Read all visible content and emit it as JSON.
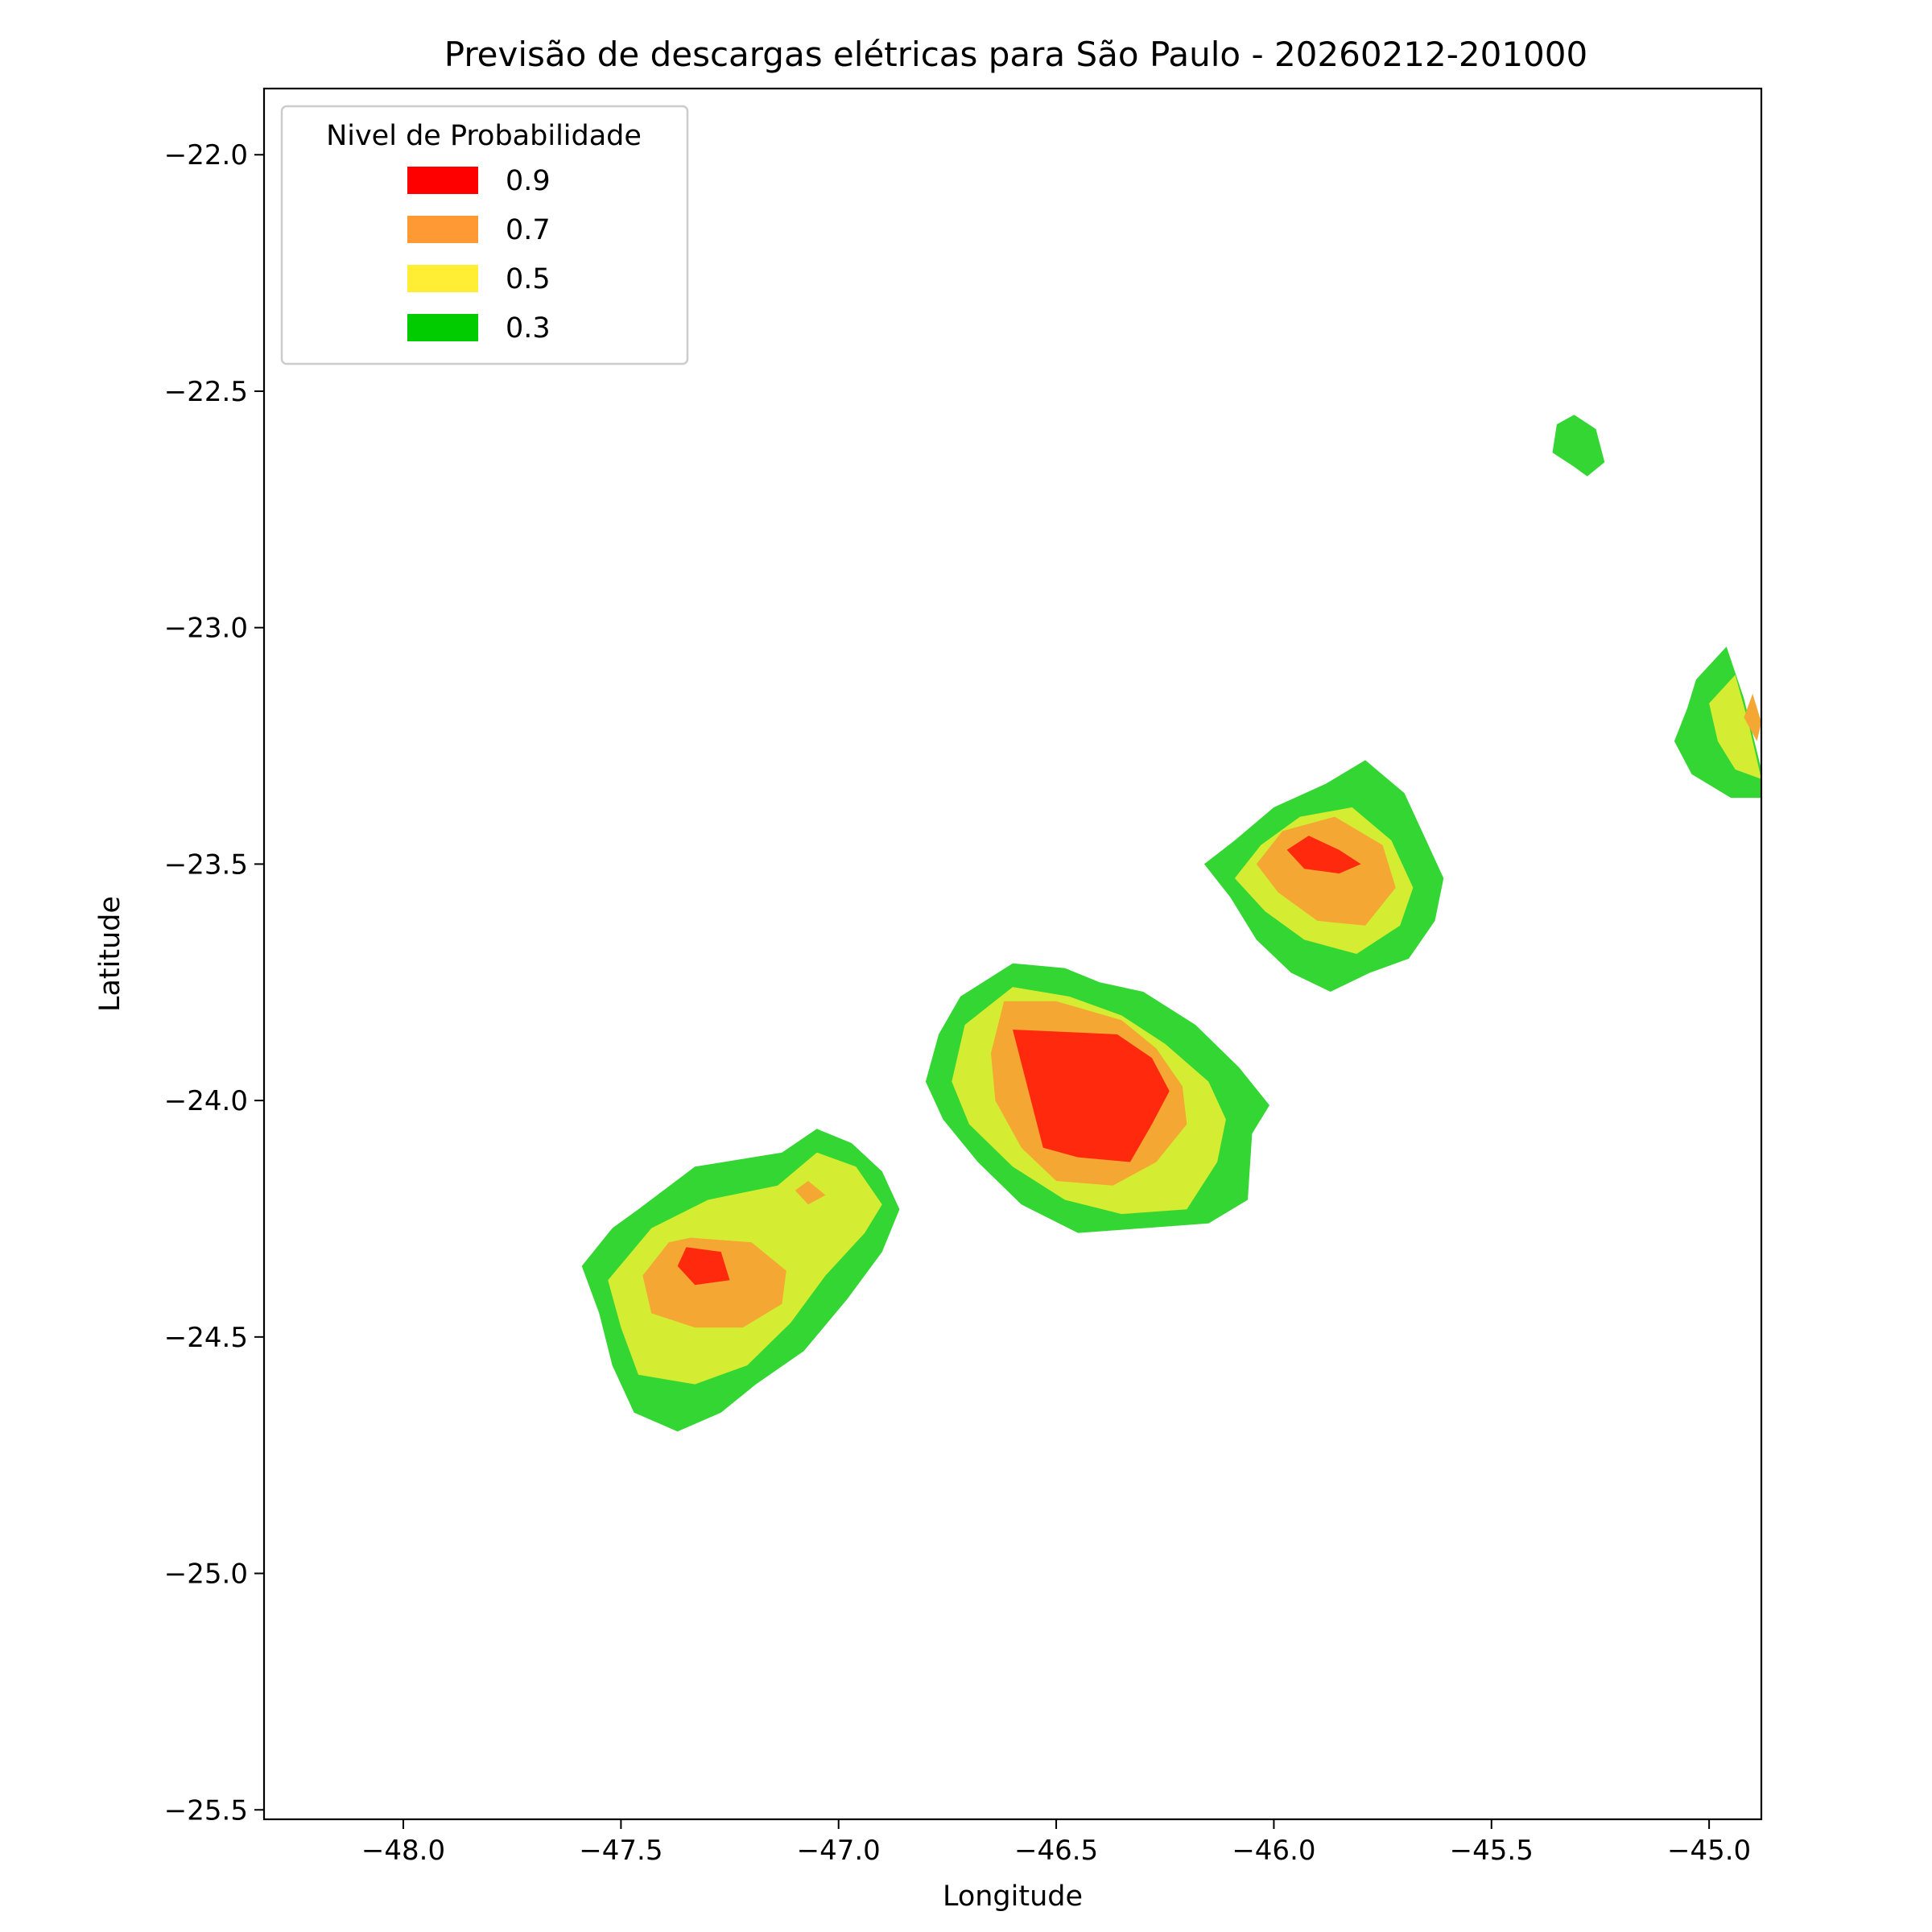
{
  "chart_data": {
    "type": "filled-contour",
    "title": "Previsão de descargas elétricas para São Paulo - 20260212-201000",
    "xlabel": "Longitude",
    "ylabel": "Latitude",
    "xlim": [
      -48.32,
      -44.88
    ],
    "ylim": [
      -25.52,
      -21.86
    ],
    "xticks": [
      -48.0,
      -47.5,
      -47.0,
      -46.5,
      -46.0,
      -45.5,
      -45.0
    ],
    "xtick_labels": [
      "−48.0",
      "−47.5",
      "−47.0",
      "−46.5",
      "−46.0",
      "−45.5",
      "−45.0"
    ],
    "yticks": [
      -22.0,
      -22.5,
      -23.0,
      -23.5,
      -24.0,
      -24.5,
      -25.0,
      -25.5
    ],
    "ytick_labels": [
      "−22.0",
      "−22.5",
      "−23.0",
      "−23.5",
      "−24.0",
      "−24.5",
      "−25.0",
      "−25.5"
    ],
    "legend": {
      "title": "Nivel de Probabilidade",
      "placement": "upper-left",
      "entries": [
        {
          "label": "0.9",
          "color": "#ff0000"
        },
        {
          "label": "0.7",
          "color": "#ff9933"
        },
        {
          "label": "0.5",
          "color": "#ffee33"
        },
        {
          "label": "0.3",
          "color": "#00cc00"
        }
      ]
    },
    "fill_colors": {
      "0.3": "#33d633",
      "0.5": "#d4ed33",
      "0.7": "#f5a733",
      "0.9": "#ff2a0d"
    },
    "regions": [
      {
        "level": "0.3",
        "lonlat": [
          [
            -47.46,
            -24.23
          ],
          [
            -47.33,
            -24.14
          ],
          [
            -47.13,
            -24.11
          ],
          [
            -47.05,
            -24.06
          ],
          [
            -46.97,
            -24.09
          ],
          [
            -46.9,
            -24.15
          ],
          [
            -46.86,
            -24.23
          ],
          [
            -46.9,
            -24.32
          ],
          [
            -46.98,
            -24.42
          ],
          [
            -47.08,
            -24.53
          ],
          [
            -47.19,
            -24.6
          ],
          [
            -47.27,
            -24.66
          ],
          [
            -47.37,
            -24.7
          ],
          [
            -47.47,
            -24.66
          ],
          [
            -47.52,
            -24.56
          ],
          [
            -47.55,
            -24.45
          ],
          [
            -47.59,
            -24.35
          ],
          [
            -47.52,
            -24.27
          ]
        ]
      },
      {
        "level": "0.5",
        "lonlat": [
          [
            -47.43,
            -24.27
          ],
          [
            -47.3,
            -24.21
          ],
          [
            -47.14,
            -24.18
          ],
          [
            -47.05,
            -24.11
          ],
          [
            -46.96,
            -24.14
          ],
          [
            -46.9,
            -24.22
          ],
          [
            -46.94,
            -24.28
          ],
          [
            -47.03,
            -24.37
          ],
          [
            -47.11,
            -24.47
          ],
          [
            -47.21,
            -24.56
          ],
          [
            -47.33,
            -24.6
          ],
          [
            -47.46,
            -24.58
          ],
          [
            -47.5,
            -24.48
          ],
          [
            -47.53,
            -24.38
          ]
        ]
      },
      {
        "level": "0.7",
        "lonlat": [
          [
            -47.34,
            -24.29
          ],
          [
            -47.2,
            -24.3
          ],
          [
            -47.12,
            -24.36
          ],
          [
            -47.13,
            -24.43
          ],
          [
            -47.22,
            -24.48
          ],
          [
            -47.33,
            -24.48
          ],
          [
            -47.43,
            -24.45
          ],
          [
            -47.45,
            -24.37
          ],
          [
            -47.39,
            -24.3
          ]
        ]
      },
      {
        "level": "0.7",
        "lonlat": [
          [
            -47.07,
            -24.17
          ],
          [
            -47.03,
            -24.2
          ],
          [
            -47.07,
            -24.22
          ],
          [
            -47.1,
            -24.19
          ]
        ]
      },
      {
        "level": "0.9",
        "lonlat": [
          [
            -47.35,
            -24.31
          ],
          [
            -47.27,
            -24.32
          ],
          [
            -47.25,
            -24.38
          ],
          [
            -47.33,
            -24.39
          ],
          [
            -47.37,
            -24.35
          ]
        ]
      },
      {
        "level": "0.3",
        "lonlat": [
          [
            -46.72,
            -23.78
          ],
          [
            -46.6,
            -23.71
          ],
          [
            -46.48,
            -23.72
          ],
          [
            -46.4,
            -23.75
          ],
          [
            -46.3,
            -23.77
          ],
          [
            -46.18,
            -23.84
          ],
          [
            -46.08,
            -23.93
          ],
          [
            -46.01,
            -24.01
          ],
          [
            -46.05,
            -24.07
          ],
          [
            -46.06,
            -24.21
          ],
          [
            -46.15,
            -24.26
          ],
          [
            -46.3,
            -24.27
          ],
          [
            -46.45,
            -24.28
          ],
          [
            -46.58,
            -24.22
          ],
          [
            -46.68,
            -24.13
          ],
          [
            -46.76,
            -24.04
          ],
          [
            -46.8,
            -23.96
          ],
          [
            -46.77,
            -23.86
          ]
        ]
      },
      {
        "level": "0.5",
        "lonlat": [
          [
            -46.71,
            -23.84
          ],
          [
            -46.6,
            -23.76
          ],
          [
            -46.47,
            -23.78
          ],
          [
            -46.35,
            -23.82
          ],
          [
            -46.25,
            -23.88
          ],
          [
            -46.15,
            -23.96
          ],
          [
            -46.11,
            -24.04
          ],
          [
            -46.13,
            -24.13
          ],
          [
            -46.2,
            -24.23
          ],
          [
            -46.35,
            -24.24
          ],
          [
            -46.48,
            -24.21
          ],
          [
            -46.6,
            -24.14
          ],
          [
            -46.7,
            -24.05
          ],
          [
            -46.74,
            -23.96
          ]
        ]
      },
      {
        "level": "0.7",
        "lonlat": [
          [
            -46.62,
            -23.79
          ],
          [
            -46.5,
            -23.79
          ],
          [
            -46.35,
            -23.83
          ],
          [
            -46.27,
            -23.89
          ],
          [
            -46.21,
            -23.97
          ],
          [
            -46.2,
            -24.05
          ],
          [
            -46.27,
            -24.13
          ],
          [
            -46.37,
            -24.18
          ],
          [
            -46.5,
            -24.17
          ],
          [
            -46.58,
            -24.1
          ],
          [
            -46.64,
            -24.0
          ],
          [
            -46.65,
            -23.9
          ]
        ]
      },
      {
        "level": "0.9",
        "lonlat": [
          [
            -46.6,
            -23.85
          ],
          [
            -46.36,
            -23.86
          ],
          [
            -46.28,
            -23.91
          ],
          [
            -46.24,
            -23.98
          ],
          [
            -46.28,
            -24.05
          ],
          [
            -46.33,
            -24.13
          ],
          [
            -46.45,
            -24.12
          ],
          [
            -46.53,
            -24.1
          ]
        ]
      },
      {
        "level": "0.3",
        "lonlat": [
          [
            -46.09,
            -23.45
          ],
          [
            -46.0,
            -23.38
          ],
          [
            -45.88,
            -23.33
          ],
          [
            -45.79,
            -23.28
          ],
          [
            -45.7,
            -23.35
          ],
          [
            -45.65,
            -23.45
          ],
          [
            -45.61,
            -23.53
          ],
          [
            -45.63,
            -23.62
          ],
          [
            -45.69,
            -23.7
          ],
          [
            -45.78,
            -23.73
          ],
          [
            -45.87,
            -23.77
          ],
          [
            -45.96,
            -23.73
          ],
          [
            -46.04,
            -23.66
          ],
          [
            -46.1,
            -23.57
          ],
          [
            -46.16,
            -23.5
          ]
        ]
      },
      {
        "level": "0.5",
        "lonlat": [
          [
            -46.03,
            -23.46
          ],
          [
            -45.94,
            -23.4
          ],
          [
            -45.82,
            -23.38
          ],
          [
            -45.73,
            -23.45
          ],
          [
            -45.68,
            -23.55
          ],
          [
            -45.71,
            -23.63
          ],
          [
            -45.81,
            -23.69
          ],
          [
            -45.93,
            -23.66
          ],
          [
            -46.02,
            -23.6
          ],
          [
            -46.09,
            -23.53
          ]
        ]
      },
      {
        "level": "0.7",
        "lonlat": [
          [
            -45.98,
            -23.43
          ],
          [
            -45.86,
            -23.4
          ],
          [
            -45.75,
            -23.46
          ],
          [
            -45.72,
            -23.55
          ],
          [
            -45.79,
            -23.63
          ],
          [
            -45.9,
            -23.62
          ],
          [
            -45.99,
            -23.56
          ],
          [
            -46.04,
            -23.5
          ]
        ]
      },
      {
        "level": "0.9",
        "lonlat": [
          [
            -45.92,
            -23.44
          ],
          [
            -45.85,
            -23.47
          ],
          [
            -45.8,
            -23.5
          ],
          [
            -45.85,
            -23.52
          ],
          [
            -45.93,
            -23.51
          ],
          [
            -45.97,
            -23.47
          ]
        ]
      },
      {
        "level": "0.3",
        "lonlat": [
          [
            -45.31,
            -22.55
          ],
          [
            -45.26,
            -22.58
          ],
          [
            -45.24,
            -22.65
          ],
          [
            -45.28,
            -22.68
          ],
          [
            -45.31,
            -22.66
          ],
          [
            -45.36,
            -22.63
          ],
          [
            -45.35,
            -22.57
          ]
        ]
      },
      {
        "level": "0.3",
        "lonlat": [
          [
            -44.96,
            -23.04
          ],
          [
            -44.92,
            -23.15
          ],
          [
            -44.88,
            -23.3
          ],
          [
            -44.88,
            -23.36
          ],
          [
            -44.95,
            -23.36
          ],
          [
            -45.04,
            -23.31
          ],
          [
            -45.08,
            -23.24
          ],
          [
            -45.05,
            -23.17
          ],
          [
            -45.03,
            -23.11
          ]
        ]
      },
      {
        "level": "0.5",
        "lonlat": [
          [
            -44.94,
            -23.1
          ],
          [
            -44.91,
            -23.2
          ],
          [
            -44.88,
            -23.32
          ],
          [
            -44.94,
            -23.3
          ],
          [
            -44.98,
            -23.24
          ],
          [
            -45.0,
            -23.16
          ]
        ]
      },
      {
        "level": "0.7",
        "lonlat": [
          [
            -44.9,
            -23.14
          ],
          [
            -44.88,
            -23.2
          ],
          [
            -44.89,
            -23.24
          ],
          [
            -44.92,
            -23.19
          ]
        ]
      }
    ]
  }
}
